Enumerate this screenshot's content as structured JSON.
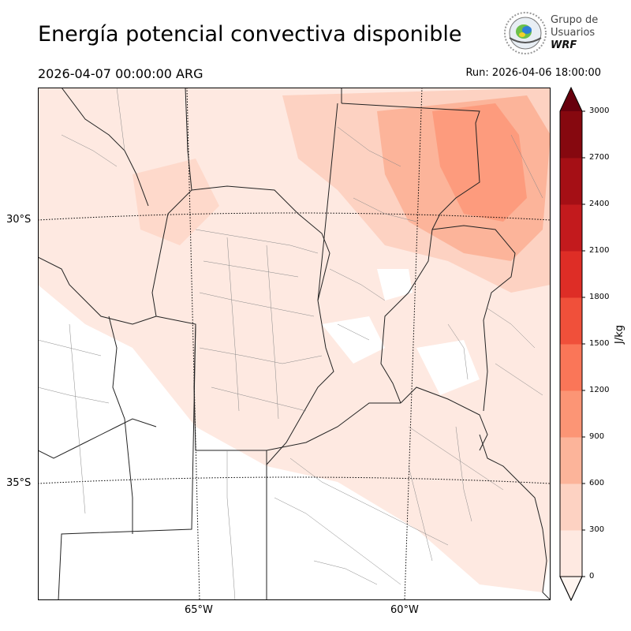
{
  "header": {
    "title": "Energía potencial convectiva disponible",
    "valid_time": "2026-04-07 00:00:00 ARG",
    "run_time": "Run: 2026-04-06 18:00:00"
  },
  "logo": {
    "line1": "Grupo de",
    "line2": "Usuarios",
    "line3": "WRF"
  },
  "map": {
    "lat_labels": [
      "30°S",
      "35°S"
    ],
    "lon_labels": [
      "65°W",
      "60°W"
    ]
  },
  "colorbar": {
    "unit": "J/kg",
    "ticks": [
      "3000",
      "2700",
      "2400",
      "2100",
      "1800",
      "1500",
      "1200",
      "900",
      "600",
      "300",
      "0"
    ],
    "colors": [
      "#fee9e1",
      "#fdd2c2",
      "#fcb49a",
      "#fc9575",
      "#fa7658",
      "#f0503a",
      "#de2d26",
      "#c31a1d",
      "#a50f15",
      "#86080f"
    ],
    "over_color": "#67000d"
  }
}
